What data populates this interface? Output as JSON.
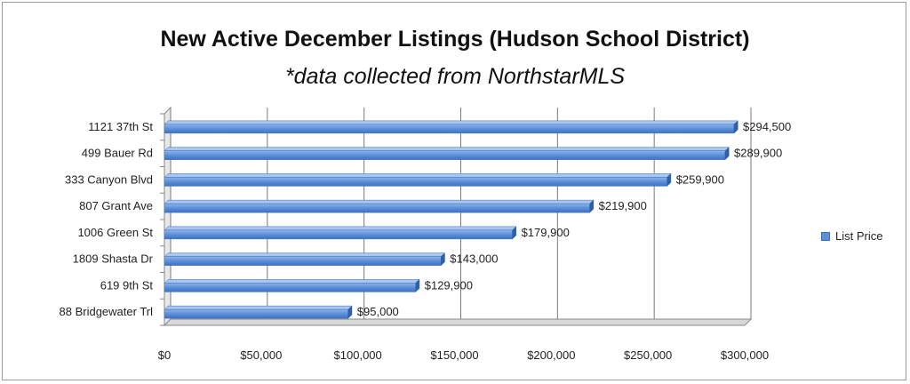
{
  "chart_data": {
    "type": "bar",
    "orientation": "horizontal",
    "title": "New Active December Listings (Hudson School District)",
    "subtitle": "*data collected from NorthstarMLS",
    "categories": [
      "1121 37th St",
      "499 Bauer Rd",
      "333 Canyon Blvd",
      "807 Grant Ave",
      "1006 Green St",
      "1809 Shasta Dr",
      "619 9th St",
      "88 Bridgewater Trl"
    ],
    "series": [
      {
        "name": "List Price",
        "values": [
          294500,
          289900,
          259900,
          219900,
          179900,
          143000,
          129900,
          95000
        ],
        "labels": [
          "$294,500",
          "$289,900",
          "$259,900",
          "$219,900",
          "$179,900",
          "$143,000",
          "$129,900",
          "$95,000"
        ]
      }
    ],
    "x_ticks": [
      0,
      50000,
      100000,
      150000,
      200000,
      250000,
      300000
    ],
    "x_tick_labels": [
      "$0",
      "$50,000",
      "$100,000",
      "$150,000",
      "$200,000",
      "$250,000",
      "$300,000"
    ],
    "xlim": [
      0,
      300000
    ],
    "grid": "vertical",
    "legend_position": "right",
    "bar_color": "#5b8fd9"
  }
}
